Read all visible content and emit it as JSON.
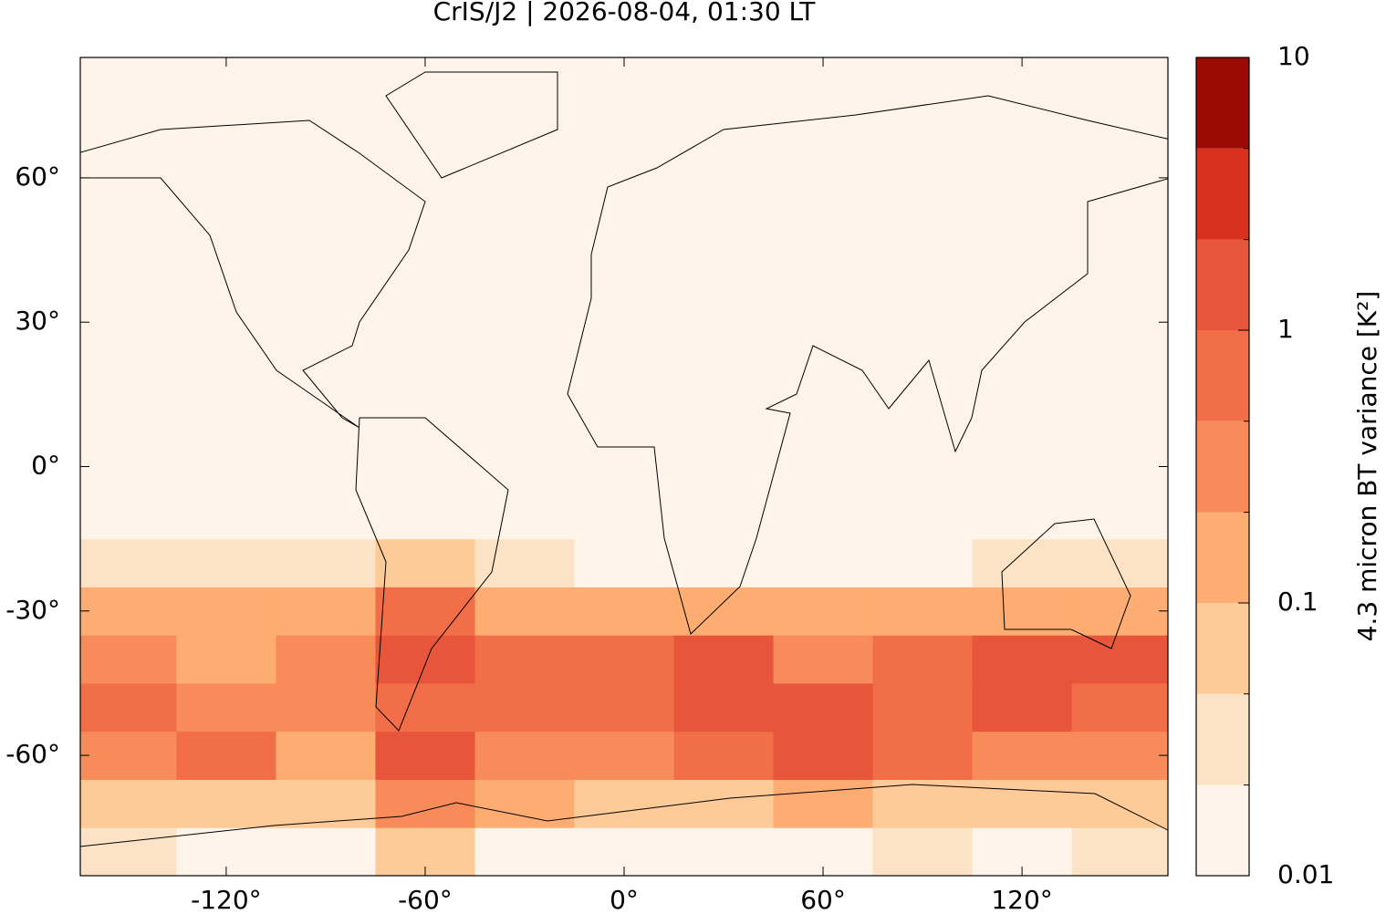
{
  "chart_data": {
    "type": "heatmap",
    "title": "CrIS/J2 | 2026-08-04, 01:30 LT",
    "xlim": [
      -164,
      164
    ],
    "ylim": [
      -85,
      85
    ],
    "xticks": [
      {
        "value": -120,
        "label": "-120°"
      },
      {
        "value": -60,
        "label": "-60°"
      },
      {
        "value": 0,
        "label": "0°"
      },
      {
        "value": 60,
        "label": "60°"
      },
      {
        "value": 120,
        "label": "120°"
      }
    ],
    "yticks": [
      {
        "value": 60,
        "label": "60°"
      },
      {
        "value": 30,
        "label": "30°"
      },
      {
        "value": 0,
        "label": "0°"
      },
      {
        "value": -30,
        "label": "-30°"
      },
      {
        "value": -60,
        "label": "-60°"
      }
    ],
    "field": {
      "lon_edges": [
        -165,
        -135,
        -105,
        -75,
        -45,
        -15,
        15,
        45,
        75,
        105,
        135,
        165
      ],
      "lat_edges": [
        -85,
        -75,
        -65,
        -55,
        -45,
        -35,
        -25,
        -15,
        -5,
        5,
        15,
        25,
        35,
        45,
        55,
        65,
        75,
        85
      ],
      "values": [
        [
          0.03,
          0.02,
          0.02,
          0.05,
          0.02,
          0.02,
          0.02,
          0.02,
          0.03,
          0.02,
          0.03
        ],
        [
          0.08,
          0.06,
          0.08,
          0.4,
          0.1,
          0.08,
          0.08,
          0.1,
          0.08,
          0.06,
          0.08
        ],
        [
          0.3,
          0.6,
          0.2,
          1.5,
          0.3,
          0.3,
          0.5,
          1.5,
          0.6,
          0.4,
          0.3
        ],
        [
          0.8,
          0.3,
          0.3,
          0.8,
          0.5,
          0.8,
          1.2,
          1.0,
          0.8,
          1.5,
          0.6
        ],
        [
          0.3,
          0.2,
          0.3,
          1.5,
          0.5,
          0.6,
          1.5,
          0.4,
          0.5,
          1.2,
          1.8
        ],
        [
          0.1,
          0.1,
          0.1,
          0.8,
          0.1,
          0.1,
          0.1,
          0.1,
          0.1,
          0.15,
          0.2
        ],
        [
          0.03,
          0.03,
          0.03,
          0.05,
          0.03,
          0.02,
          0.02,
          0.02,
          0.02,
          0.03,
          0.03
        ],
        [
          0.01,
          0.01,
          0.01,
          0.01,
          0.01,
          0.01,
          0.01,
          0.01,
          0.01,
          0.01,
          0.01
        ],
        [
          0.01,
          0.01,
          0.01,
          0.01,
          0.01,
          0.01,
          0.01,
          0.01,
          0.01,
          0.01,
          0.01
        ],
        [
          0.01,
          0.01,
          0.01,
          0.01,
          0.01,
          0.01,
          0.01,
          0.01,
          0.01,
          0.01,
          0.01
        ],
        [
          0.01,
          0.01,
          0.01,
          0.02,
          0.01,
          0.01,
          0.01,
          0.01,
          0.01,
          0.02,
          0.01
        ],
        [
          0.01,
          0.01,
          0.01,
          0.02,
          0.01,
          0.01,
          0.01,
          0.01,
          0.01,
          0.01,
          0.01
        ],
        [
          0.01,
          0.01,
          0.01,
          0.01,
          0.01,
          0.01,
          0.01,
          0.01,
          0.01,
          0.01,
          0.01
        ],
        [
          0.01,
          0.01,
          0.01,
          0.02,
          0.01,
          0.01,
          0.01,
          0.01,
          0.01,
          0.01,
          0.01
        ],
        [
          0.01,
          0.01,
          0.01,
          0.01,
          0.01,
          0.01,
          0.01,
          0.01,
          0.01,
          0.01,
          0.01
        ],
        [
          0.01,
          0.01,
          0.01,
          0.01,
          0.01,
          0.01,
          0.01,
          0.01,
          0.01,
          0.01,
          0.01
        ],
        [
          0.01,
          0.01,
          0.01,
          0.01,
          0.01,
          0.01,
          0.01,
          0.01,
          0.01,
          0.01,
          0.01
        ]
      ]
    },
    "colorbar": {
      "label": "4.3 micron BT variance [K²]",
      "log_scale": true,
      "lim": [
        0.01,
        10
      ],
      "ticks": [
        0.01,
        0.1,
        1,
        10
      ],
      "levels": [
        0.01,
        0.0215,
        0.0464,
        0.1,
        0.215,
        0.464,
        1,
        2.15,
        4.64,
        10
      ],
      "colors": [
        "#fff4e9",
        "#fde3c6",
        "#fdcb98",
        "#fdad71",
        "#f78c5a",
        "#f16e48",
        "#e7553b",
        "#d7301f",
        "#9b0a05"
      ]
    }
  }
}
